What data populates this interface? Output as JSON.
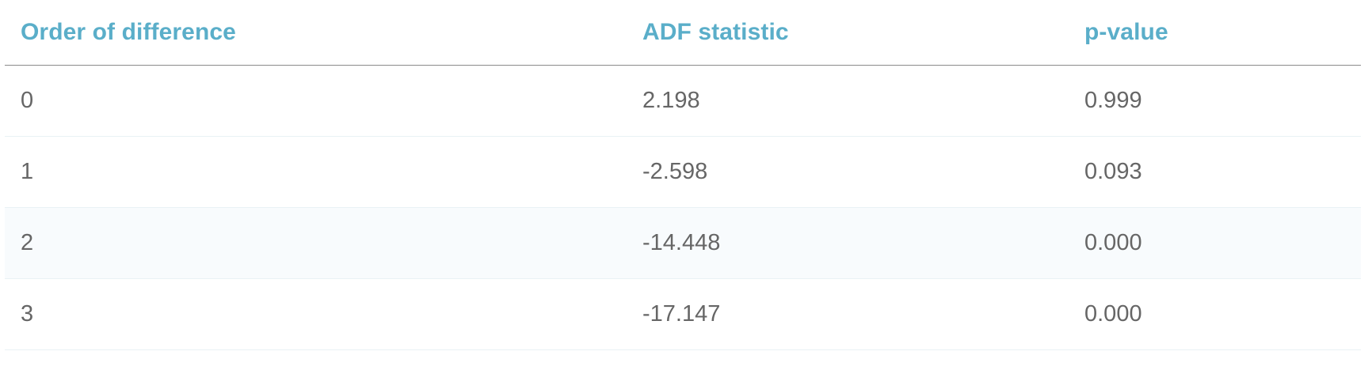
{
  "table": {
    "headers": [
      "Order of difference",
      "ADF statistic",
      "p-value"
    ],
    "rows": [
      [
        "0",
        "2.198",
        "0.999"
      ],
      [
        "1",
        "-2.598",
        "0.093"
      ],
      [
        "2",
        "-14.448",
        "0.000"
      ],
      [
        "3",
        "-17.147",
        "0.000"
      ]
    ]
  },
  "colors": {
    "header_text": "#5aaec9",
    "body_text": "#666666",
    "alt_row_background": "#f8fbfd"
  }
}
